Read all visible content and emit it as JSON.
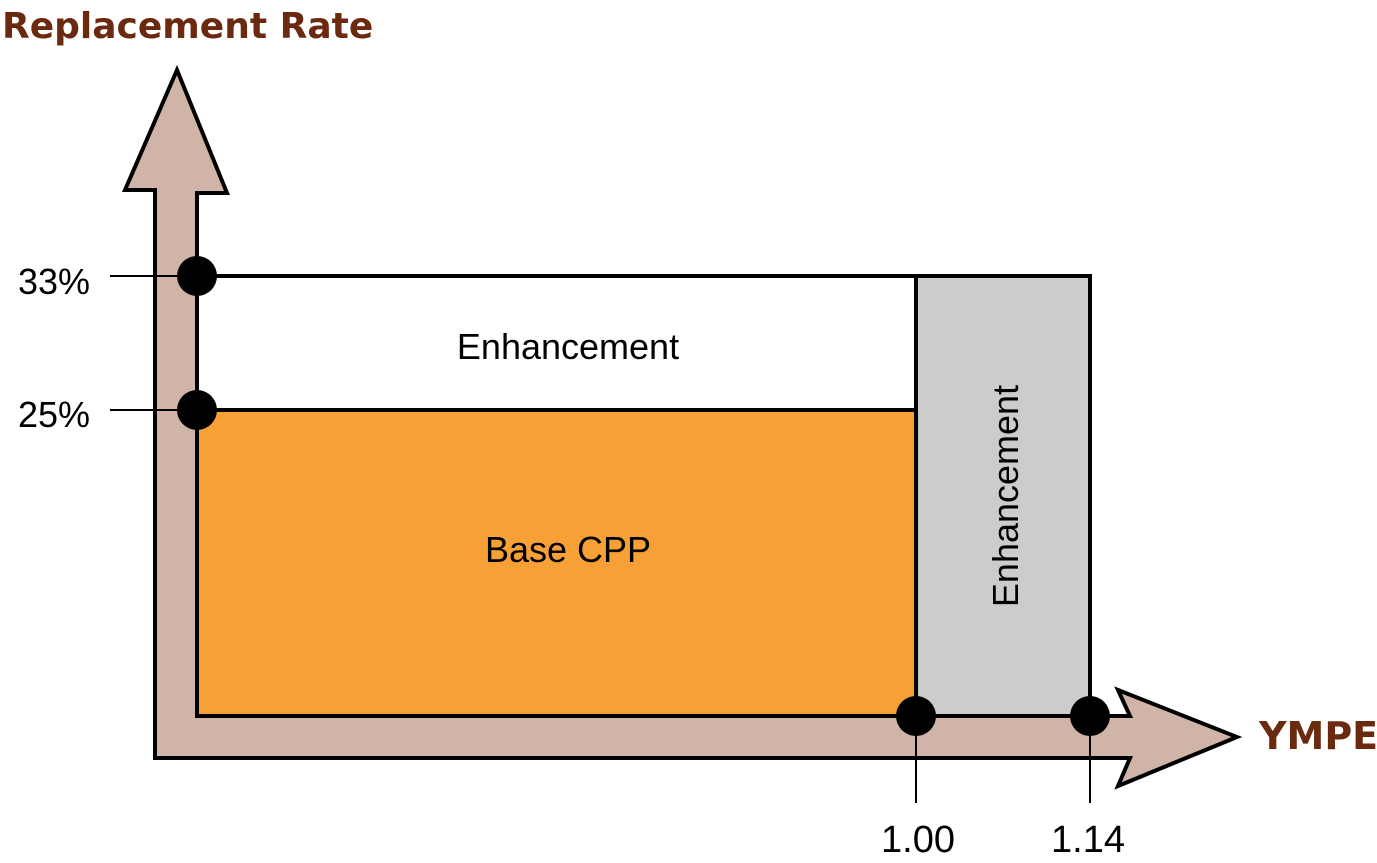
{
  "y_axis": {
    "title": "Replacement Rate",
    "ticks": [
      "33%",
      "25%"
    ]
  },
  "x_axis": {
    "title": "YMPE",
    "ticks": [
      "1.00",
      "1.14"
    ]
  },
  "regions": {
    "base": {
      "label": "Base CPP"
    },
    "enhancement_top": {
      "label": "Enhancement"
    },
    "enhancement_side": {
      "label": "Enhancement"
    }
  },
  "colors": {
    "axis_fill": "#d0b4a8",
    "axis_title": "#6b2a0f",
    "base": "#f7a036",
    "enhancement_top": "#ffffff",
    "enhancement_side": "#cccccc"
  }
}
